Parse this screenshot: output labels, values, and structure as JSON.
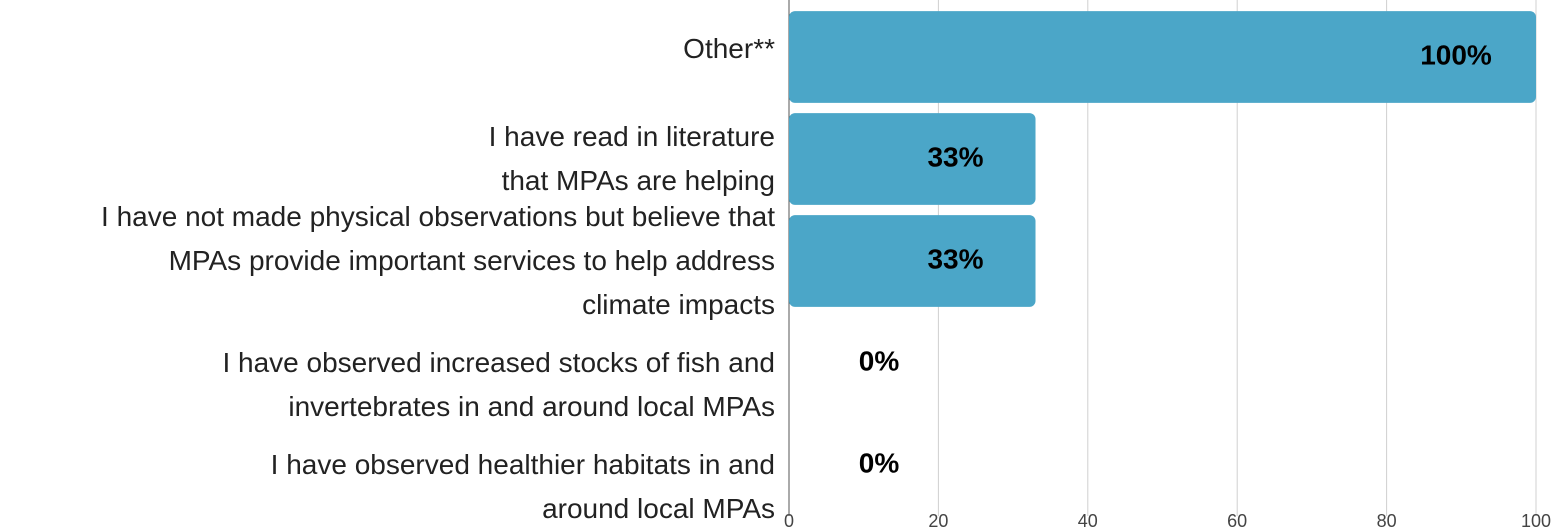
{
  "chart_data": {
    "type": "bar",
    "orientation": "horizontal",
    "categories": [
      "Other**",
      "I have read in literature\nthat MPAs are helping",
      "I have not made physical observations but believe that\nMPAs provide important services to help address\nclimate impacts",
      "I have observed increased stocks of fish and\ninvertebrates in and around local MPAs",
      "I have observed healthier habitats in and\naround local MPAs"
    ],
    "values": [
      100,
      33,
      33,
      0,
      0
    ],
    "value_labels": [
      "100%",
      "33%",
      "33%",
      "0%",
      "0%"
    ],
    "color": "#4ba6c8",
    "xlim": [
      0,
      100
    ],
    "xticks": [
      0,
      20,
      40,
      60,
      80,
      100
    ],
    "grid": true
  }
}
